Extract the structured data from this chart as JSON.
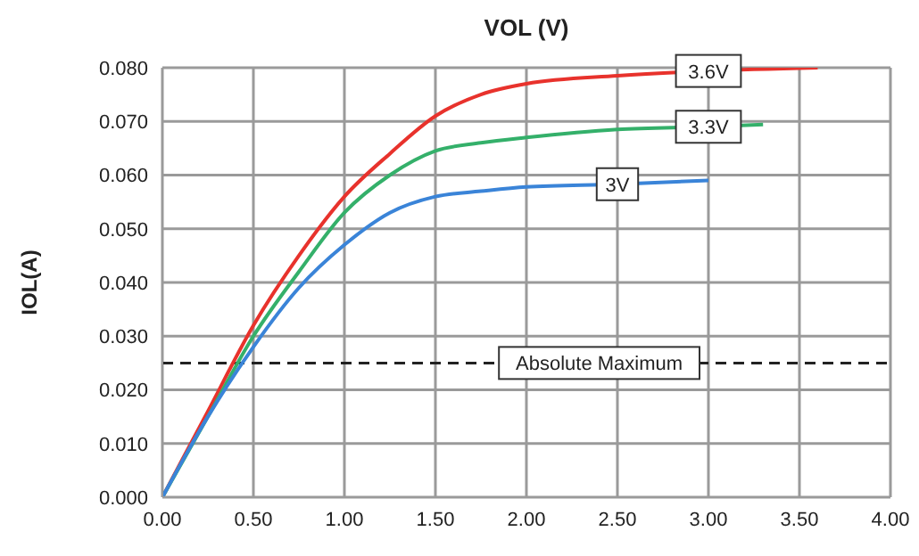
{
  "chart_data": {
    "type": "line",
    "title": "VOL (V)",
    "ylabel": "IOL(A)",
    "xlim": [
      0,
      4
    ],
    "xticks": [
      {
        "value": 0,
        "label": "0.00"
      },
      {
        "value": 0.5,
        "label": "0.50"
      },
      {
        "value": 1,
        "label": "1.00"
      },
      {
        "value": 1.5,
        "label": "1.50"
      },
      {
        "value": 2,
        "label": "2.00"
      },
      {
        "value": 2.5,
        "label": "2.50"
      },
      {
        "value": 3,
        "label": "3.00"
      },
      {
        "value": 3.5,
        "label": "3.50"
      },
      {
        "value": 4,
        "label": "4.00"
      }
    ],
    "ylim": [
      0,
      0.08
    ],
    "yticks": [
      {
        "value": 0,
        "label": "0.000"
      },
      {
        "value": 0.01,
        "label": "0.010"
      },
      {
        "value": 0.02,
        "label": "0.020"
      },
      {
        "value": 0.03,
        "label": "0.030"
      },
      {
        "value": 0.04,
        "label": "0.040"
      },
      {
        "value": 0.05,
        "label": "0.050"
      },
      {
        "value": 0.06,
        "label": "0.060"
      },
      {
        "value": 0.07,
        "label": "0.070"
      },
      {
        "value": 0.08,
        "label": "0.080"
      }
    ],
    "grid": true,
    "marker": "none",
    "line_style": "solid",
    "series": [
      {
        "name": "3.6V",
        "color": "#e8322c",
        "x": [
          0,
          0.25,
          0.5,
          0.75,
          1,
          1.25,
          1.5,
          1.75,
          2,
          2.5,
          3,
          3.6
        ],
        "values": [
          0,
          0.016,
          0.032,
          0.045,
          0.056,
          0.064,
          0.071,
          0.075,
          0.077,
          0.0785,
          0.0794,
          0.08
        ]
      },
      {
        "name": "3.3V",
        "color": "#34b06a",
        "x": [
          0,
          0.25,
          0.5,
          0.75,
          1,
          1.25,
          1.5,
          1.75,
          2,
          2.5,
          3,
          3.3
        ],
        "values": [
          0,
          0.015,
          0.03,
          0.042,
          0.053,
          0.06,
          0.0645,
          0.066,
          0.067,
          0.0685,
          0.069,
          0.0694
        ]
      },
      {
        "name": "3V",
        "color": "#3a84d8",
        "x": [
          0,
          0.25,
          0.5,
          0.75,
          1,
          1.25,
          1.5,
          1.75,
          2,
          2.5,
          3
        ],
        "values": [
          0,
          0.015,
          0.028,
          0.039,
          0.047,
          0.053,
          0.056,
          0.057,
          0.0578,
          0.0583,
          0.059
        ]
      }
    ],
    "ref_lines": [
      {
        "axis": "y",
        "value": 0.025,
        "label": "Absolute Maximum",
        "color": "#222222",
        "line_style": "dashed"
      }
    ]
  }
}
